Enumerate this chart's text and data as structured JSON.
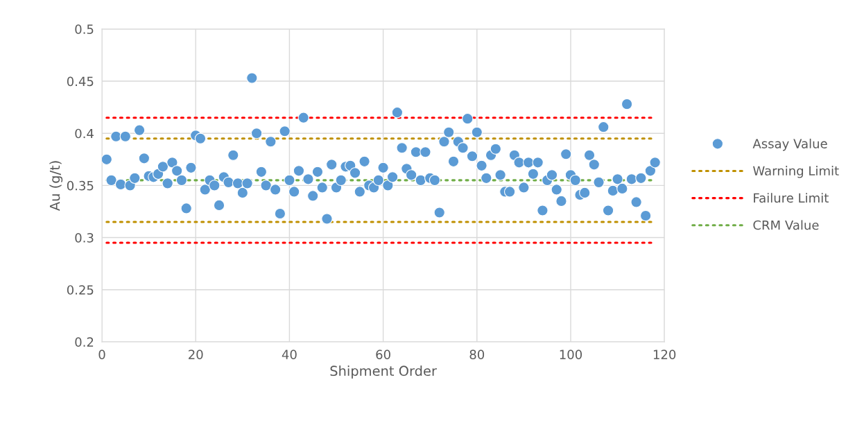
{
  "chart_data": {
    "type": "scatter",
    "xlabel": "Shipment Order",
    "ylabel": "Au (g/t)",
    "xlim": [
      0,
      120
    ],
    "xticks": [
      0,
      20,
      40,
      60,
      80,
      100,
      120
    ],
    "ylim": [
      0.2,
      0.5
    ],
    "yticks": [
      0.2,
      0.25,
      0.3,
      0.35,
      0.4,
      0.45,
      0.5
    ],
    "grid": true,
    "legend": "right",
    "marker": "circle",
    "series": [
      {
        "name": "Assay Value",
        "color": "#5b9bd5",
        "x": [
          1,
          2,
          3,
          4,
          5,
          6,
          7,
          8,
          9,
          10,
          11,
          12,
          13,
          14,
          15,
          16,
          17,
          18,
          19,
          20,
          21,
          22,
          23,
          24,
          25,
          26,
          27,
          28,
          29,
          30,
          31,
          32,
          33,
          34,
          35,
          36,
          37,
          38,
          39,
          40,
          41,
          42,
          43,
          44,
          45,
          46,
          47,
          48,
          49,
          50,
          51,
          52,
          53,
          54,
          55,
          56,
          57,
          58,
          59,
          60,
          61,
          62,
          63,
          64,
          65,
          66,
          67,
          68,
          69,
          70,
          71,
          72,
          73,
          74,
          75,
          76,
          77,
          78,
          79,
          80,
          81,
          82,
          83,
          84,
          85,
          86,
          87,
          88,
          89,
          90,
          91,
          92,
          93,
          94,
          95,
          96,
          97,
          98,
          99,
          100,
          101,
          102,
          103,
          104,
          105,
          106,
          107,
          108,
          109,
          110,
          111,
          112,
          113,
          114,
          115,
          116,
          117,
          118
        ],
        "values": [
          0.375,
          0.355,
          0.397,
          0.351,
          0.397,
          0.35,
          0.357,
          0.403,
          0.376,
          0.359,
          0.358,
          0.361,
          0.368,
          0.352,
          0.372,
          0.364,
          0.355,
          0.328,
          0.367,
          0.398,
          0.395,
          0.346,
          0.355,
          0.35,
          0.331,
          0.358,
          0.353,
          0.379,
          0.352,
          0.343,
          0.352,
          0.453,
          0.4,
          0.363,
          0.35,
          0.392,
          0.346,
          0.323,
          0.402,
          0.355,
          0.344,
          0.364,
          0.415,
          0.356,
          0.34,
          0.363,
          0.348,
          0.318,
          0.37,
          0.348,
          0.355,
          0.368,
          0.369,
          0.362,
          0.344,
          0.373,
          0.35,
          0.348,
          0.355,
          0.367,
          0.35,
          0.358,
          0.42,
          0.386,
          0.366,
          0.36,
          0.382,
          0.355,
          0.382,
          0.357,
          0.355,
          0.324,
          0.392,
          0.401,
          0.373,
          0.392,
          0.386,
          0.414,
          0.378,
          0.401,
          0.369,
          0.357,
          0.379,
          0.385,
          0.36,
          0.344,
          0.344,
          0.379,
          0.372,
          0.348,
          0.372,
          0.361,
          0.372,
          0.326,
          0.355,
          0.36,
          0.346,
          0.335,
          0.38,
          0.36,
          0.355,
          0.341,
          0.343,
          0.379,
          0.37,
          0.353,
          0.406,
          0.326,
          0.345,
          0.356,
          0.347,
          0.428,
          0.356,
          0.334,
          0.357,
          0.321,
          0.364,
          0.372
        ]
      },
      {
        "name": "Warning Limit",
        "type": "line",
        "marker": "none",
        "line_style": "dotted",
        "color": "#bf9000",
        "x": [
          1,
          118
        ],
        "values": [
          0.395,
          0.395
        ]
      },
      {
        "type": "line",
        "marker": "none",
        "line_style": "dotted",
        "color": "#bf9000",
        "x": [
          1,
          118
        ],
        "values": [
          0.315,
          0.315
        ]
      },
      {
        "name": "Failure Limit",
        "type": "line",
        "marker": "none",
        "line_style": "dotted",
        "color": "#ff0000",
        "x": [
          1,
          118
        ],
        "values": [
          0.415,
          0.415
        ]
      },
      {
        "type": "line",
        "marker": "none",
        "line_style": "dotted",
        "color": "#ff0000",
        "x": [
          1,
          118
        ],
        "values": [
          0.295,
          0.295
        ]
      },
      {
        "name": "CRM Value",
        "type": "line",
        "marker": "none",
        "line_style": "dotted",
        "color": "#70ad47",
        "x": [
          1,
          118
        ],
        "values": [
          0.355,
          0.355
        ]
      }
    ]
  }
}
